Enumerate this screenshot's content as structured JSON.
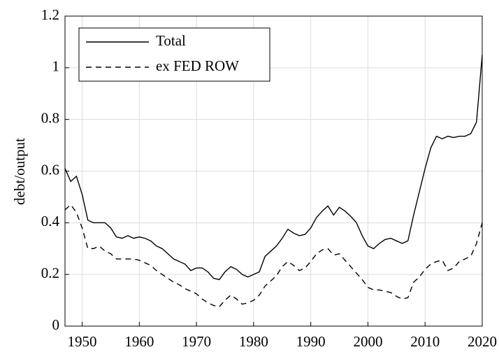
{
  "chart_data": {
    "type": "line",
    "y_label": "debt/output",
    "x": [
      1947,
      1948,
      1949,
      1950,
      1951,
      1952,
      1953,
      1954,
      1955,
      1956,
      1957,
      1958,
      1959,
      1960,
      1961,
      1962,
      1963,
      1964,
      1965,
      1966,
      1967,
      1968,
      1969,
      1970,
      1971,
      1972,
      1973,
      1974,
      1975,
      1976,
      1977,
      1978,
      1979,
      1980,
      1981,
      1982,
      1983,
      1984,
      1985,
      1986,
      1987,
      1988,
      1989,
      1990,
      1991,
      1992,
      1993,
      1994,
      1995,
      1996,
      1997,
      1998,
      1999,
      2000,
      2001,
      2002,
      2003,
      2004,
      2005,
      2006,
      2007,
      2008,
      2009,
      2010,
      2011,
      2012,
      2013,
      2014,
      2015,
      2016,
      2017,
      2018,
      2019,
      2020
    ],
    "series": [
      {
        "name": "Total",
        "color": "#000000",
        "dash": "solid",
        "values": [
          0.61,
          0.56,
          0.58,
          0.51,
          0.41,
          0.4,
          0.4,
          0.4,
          0.38,
          0.345,
          0.34,
          0.35,
          0.34,
          0.345,
          0.34,
          0.33,
          0.31,
          0.3,
          0.28,
          0.26,
          0.25,
          0.24,
          0.215,
          0.225,
          0.225,
          0.21,
          0.185,
          0.18,
          0.21,
          0.23,
          0.22,
          0.2,
          0.19,
          0.2,
          0.21,
          0.27,
          0.29,
          0.31,
          0.34,
          0.375,
          0.36,
          0.35,
          0.355,
          0.38,
          0.42,
          0.445,
          0.465,
          0.43,
          0.46,
          0.445,
          0.425,
          0.4,
          0.35,
          0.31,
          0.3,
          0.32,
          0.335,
          0.34,
          0.33,
          0.32,
          0.33,
          0.43,
          0.52,
          0.61,
          0.69,
          0.735,
          0.725,
          0.735,
          0.73,
          0.735,
          0.735,
          0.745,
          0.79,
          1.05
        ]
      },
      {
        "name": "ex FED ROW",
        "color": "#000000",
        "dash": "dashed",
        "values": [
          0.45,
          0.47,
          0.44,
          0.38,
          0.3,
          0.3,
          0.31,
          0.29,
          0.28,
          0.26,
          0.26,
          0.26,
          0.26,
          0.255,
          0.245,
          0.235,
          0.215,
          0.2,
          0.185,
          0.17,
          0.16,
          0.145,
          0.135,
          0.125,
          0.105,
          0.09,
          0.08,
          0.075,
          0.1,
          0.12,
          0.105,
          0.085,
          0.09,
          0.1,
          0.12,
          0.155,
          0.175,
          0.195,
          0.23,
          0.25,
          0.235,
          0.215,
          0.225,
          0.25,
          0.28,
          0.295,
          0.3,
          0.275,
          0.28,
          0.255,
          0.23,
          0.205,
          0.18,
          0.15,
          0.14,
          0.14,
          0.135,
          0.13,
          0.115,
          0.105,
          0.11,
          0.17,
          0.19,
          0.22,
          0.24,
          0.25,
          0.255,
          0.215,
          0.225,
          0.25,
          0.26,
          0.27,
          0.32,
          0.4
        ]
      }
    ],
    "xlim": [
      1947,
      2020
    ],
    "xticks": [
      1950,
      1960,
      1970,
      1980,
      1990,
      2000,
      2010,
      2020
    ],
    "ylim": [
      0,
      1.2
    ],
    "yticks": [
      0,
      0.2,
      0.4,
      0.6,
      0.8,
      1,
      1.2
    ],
    "grid": true,
    "legend": "upper-left"
  }
}
